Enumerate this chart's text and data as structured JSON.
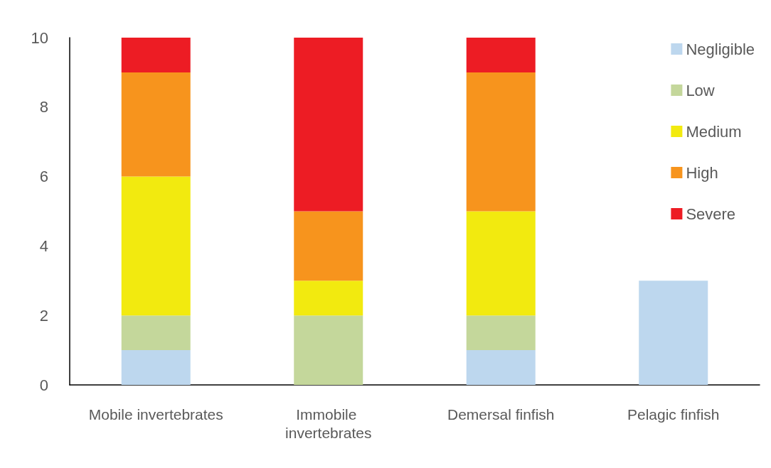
{
  "chart_data": {
    "type": "bar",
    "stacked": true,
    "categories": [
      "Mobile invertebrates",
      "Immobile invertebrates",
      "Demersal finfish",
      "Pelagic finfish"
    ],
    "series": [
      {
        "name": "Negligible",
        "color": "#bdd7ee",
        "values": [
          1,
          0,
          1,
          3
        ]
      },
      {
        "name": "Low",
        "color": "#c4d79b",
        "values": [
          1,
          2,
          1,
          0
        ]
      },
      {
        "name": "Medium",
        "color": "#f2ea0f",
        "values": [
          4,
          1,
          3,
          0
        ]
      },
      {
        "name": "High",
        "color": "#f7941d",
        "values": [
          3,
          2,
          4,
          0
        ]
      },
      {
        "name": "Severe",
        "color": "#ed1c24",
        "values": [
          1,
          5,
          1,
          0
        ]
      }
    ],
    "ylim": [
      0,
      10
    ],
    "yticks": [
      0,
      2,
      4,
      6,
      8,
      10
    ],
    "grid": false,
    "legend": "top right"
  }
}
